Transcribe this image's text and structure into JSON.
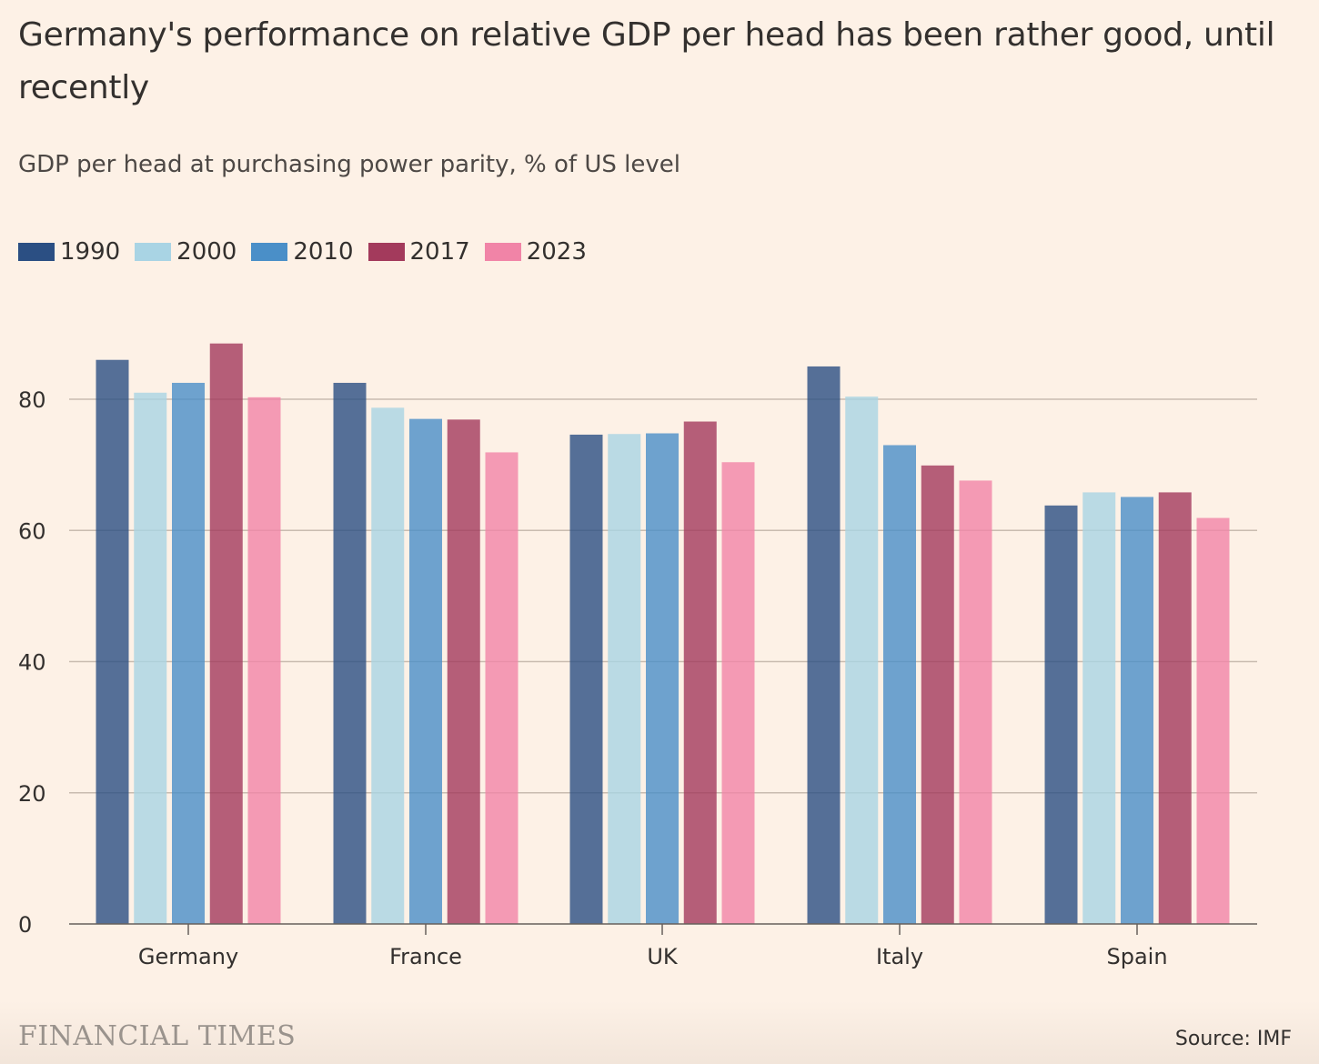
{
  "header": {
    "title": "Germany's performance on relative GDP per head has been rather good, until recently",
    "subtitle": "GDP per head at purchasing power parity, % of US level"
  },
  "footer": {
    "brand": "FINANCIAL TIMES",
    "source": "Source: IMF"
  },
  "chart_data": {
    "type": "bar",
    "categories": [
      "Germany",
      "France",
      "UK",
      "Italy",
      "Spain"
    ],
    "series": [
      {
        "name": "1990",
        "color": "#2b4f83",
        "values": [
          86.0,
          82.5,
          74.6,
          85.0,
          63.8
        ]
      },
      {
        "name": "2000",
        "color": "#a9d4e4",
        "values": [
          81.0,
          78.7,
          74.7,
          80.4,
          65.8
        ]
      },
      {
        "name": "2010",
        "color": "#4a8fc8",
        "values": [
          82.5,
          77.0,
          74.8,
          73.0,
          65.1
        ]
      },
      {
        "name": "2017",
        "color": "#a33a5c",
        "values": [
          88.5,
          76.9,
          76.6,
          69.9,
          65.8
        ]
      },
      {
        "name": "2023",
        "color": "#f184a7",
        "values": [
          80.3,
          71.9,
          70.4,
          67.6,
          61.9
        ]
      }
    ],
    "yticks": [
      0,
      20,
      40,
      60,
      80
    ],
    "ylim": [
      0,
      90
    ],
    "grid": true,
    "legend": "top-left"
  }
}
